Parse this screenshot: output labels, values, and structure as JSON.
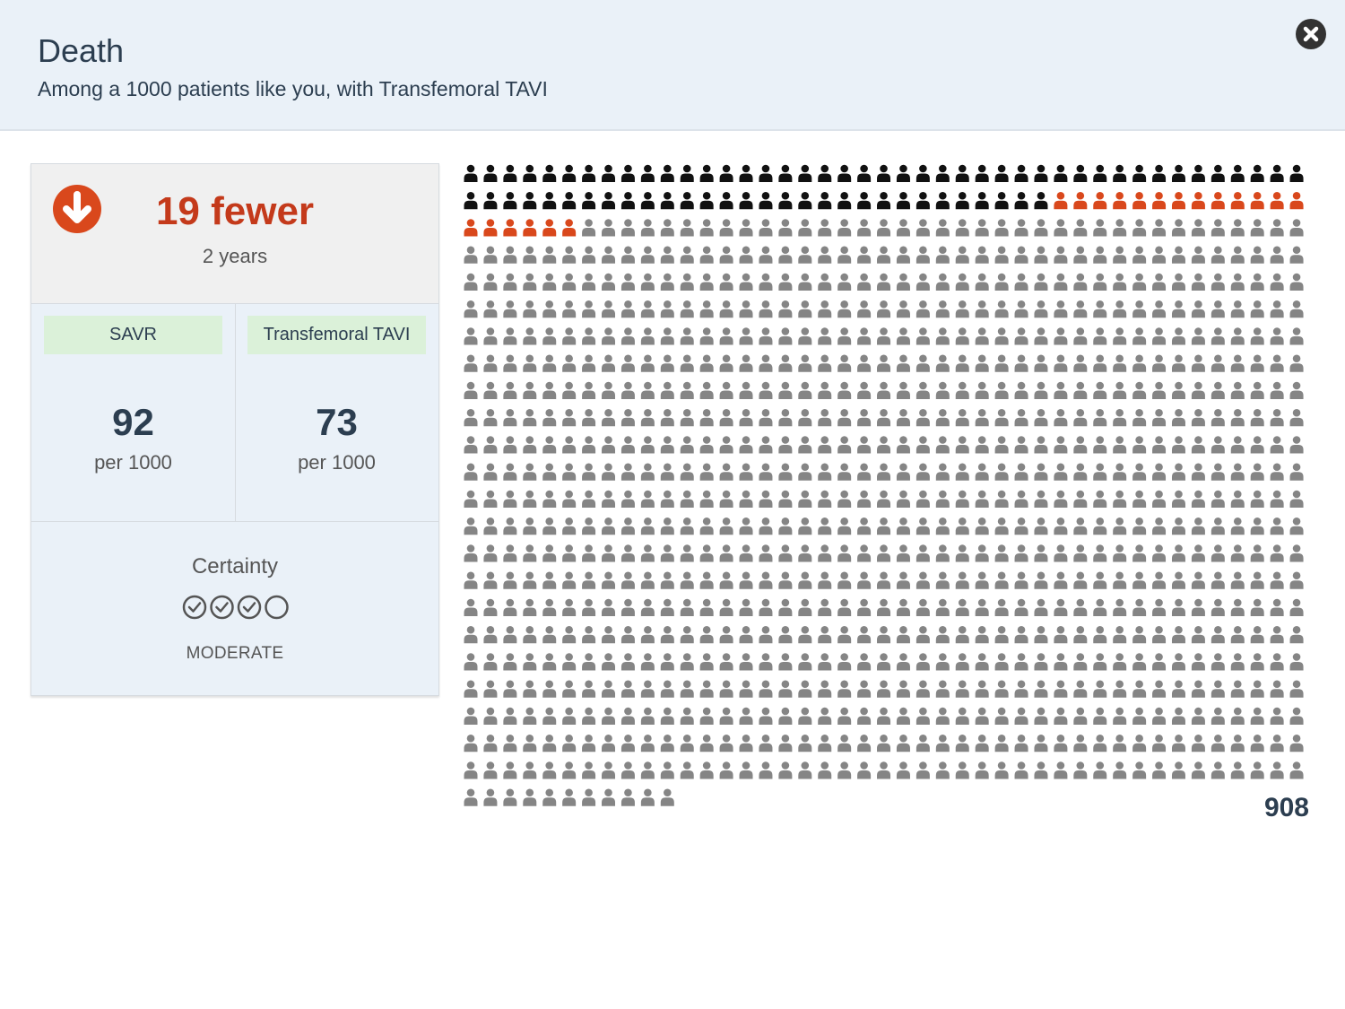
{
  "header": {
    "title": "Death",
    "subtitle": "Among a 1000 patients like you, with Transfemoral TAVI",
    "close_icon": "close-icon"
  },
  "summary": {
    "direction_icon": "arrow-down-circle-icon",
    "difference": "19 fewer",
    "period": "2 years",
    "accent_color": "#c43a1b"
  },
  "comparison": [
    {
      "label": "SAVR",
      "value": "92",
      "unit": "per 1000"
    },
    {
      "label": "Transfemoral TAVI",
      "value": "73",
      "unit": "per 1000"
    }
  ],
  "certainty": {
    "title": "Certainty",
    "level": "MODERATE",
    "filled": 3,
    "total": 4
  },
  "icon_grid": {
    "total": 1000,
    "per_row": 43,
    "groups": [
      {
        "count": 73,
        "color": "#111111"
      },
      {
        "count": 19,
        "color": "#d9481c"
      },
      {
        "count": 908,
        "color": "#858585"
      }
    ],
    "unaffected_count": "908"
  }
}
